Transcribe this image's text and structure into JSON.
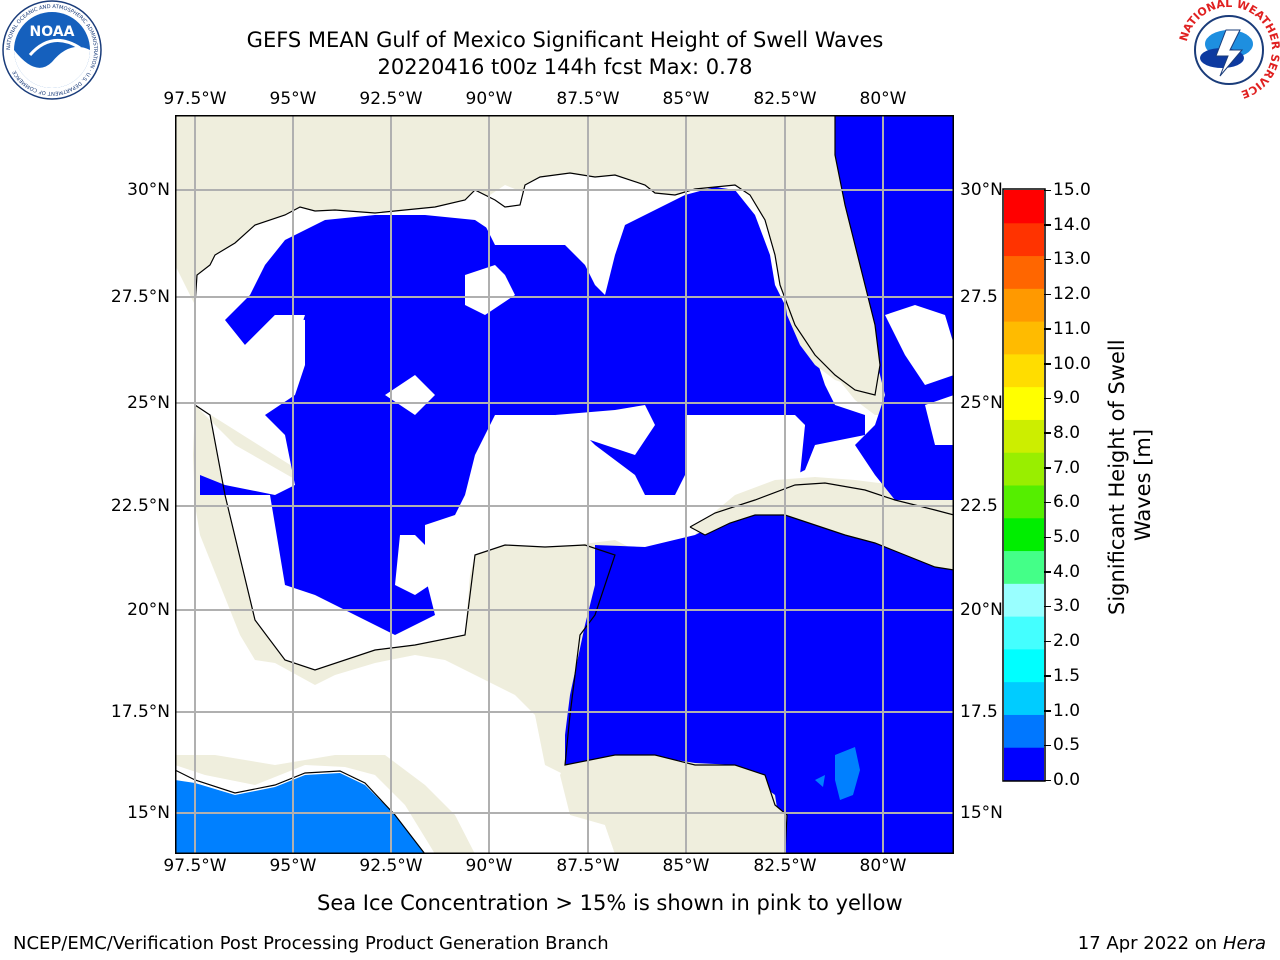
{
  "title_line1": "GEFS MEAN Gulf of Mexico Significant Height of Swell Waves",
  "title_line2": "20220416 t00z 144h fcst   Max: 0.78",
  "logos": {
    "noaa_text": "NOAA",
    "noaa_ring": "NATIONAL OCEANIC AND ATMOSPHERIC ADMINISTRATION · U.S. DEPARTMENT OF COMMERCE",
    "nws_ring": "NATIONAL WEATHER SERVICE"
  },
  "lon_ticks": [
    "97.5°W",
    "95°W",
    "92.5°W",
    "90°W",
    "87.5°W",
    "85°W",
    "82.5°W",
    "80°W"
  ],
  "lat_ticks": [
    "30°N",
    "27.5°N",
    "25°N",
    "22.5°N",
    "20°N",
    "17.5°N",
    "15°N"
  ],
  "lat_ticks_right": [
    "30°N",
    "27.5",
    "25°N",
    "22.5",
    "20°N",
    "17.5",
    "15°N"
  ],
  "colorbar": {
    "label_line1": "Significant Height of Swell",
    "label_line2": "Waves [m]",
    "ticks": [
      "15.0",
      "14.0",
      "13.0",
      "12.0",
      "11.0",
      "10.0",
      "9.0",
      "8.0",
      "7.0",
      "6.0",
      "5.0",
      "4.0",
      "3.0",
      "2.0",
      "1.5",
      "1.0",
      "0.5",
      "0.0"
    ],
    "colors_bottom_to_top": [
      "#0000ff",
      "#0077ff",
      "#00ccff",
      "#00ffff",
      "#44ffff",
      "#99ffff",
      "#44ff88",
      "#00ee00",
      "#55ee00",
      "#99ee00",
      "#ccee00",
      "#ffff00",
      "#ffdd00",
      "#ffbb00",
      "#ff9900",
      "#ff6600",
      "#ff3300",
      "#ff0000"
    ]
  },
  "colors": {
    "land": "#efeedd",
    "ocean_low": "#0000ff",
    "ocean_mid": "#0080ff",
    "masked": "#ffffff",
    "grid": "#b0b0b0"
  },
  "note": "Sea Ice Concentration > 15% is shown in pink to yellow",
  "footer_left": "NCEP/EMC/Verification Post Processing Product Generation Branch",
  "footer_right_date": "17 Apr 2022 on ",
  "footer_right_host": "Hera"
}
